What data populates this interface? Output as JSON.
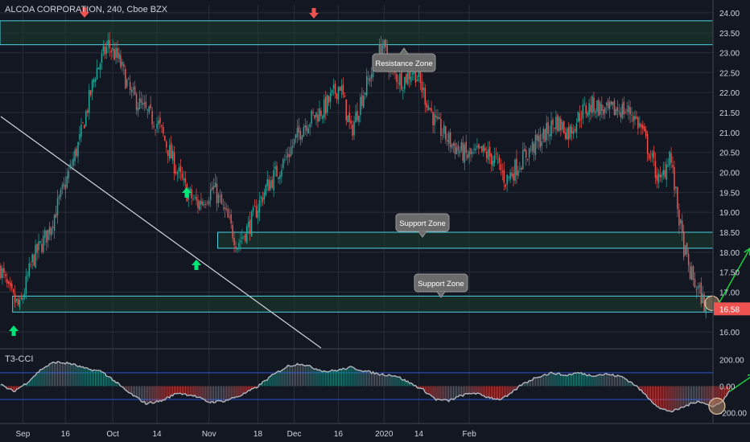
{
  "header": {
    "title": "ALCOA CORPORATION, 240, Cboe BZX",
    "indicator_title": "T3-CCI"
  },
  "colors": {
    "background": "#131722",
    "grid": "#2a2e39",
    "text": "#d1d4dc",
    "up": "#26a69a",
    "down": "#ef5350",
    "zone_fill": "#1b3a2e",
    "zone_border": "#4dd0e1",
    "trendline": "#d1d4dc",
    "arrow_green": "#00e676",
    "projection": "#19d23a",
    "last_price_bg": "#ef5350",
    "callout_bg": "#6b6b6b"
  },
  "annotations": {
    "resistance_label": "Resistance Zone",
    "support_label_1": "Support Zone",
    "support_label_2": "Support Zone"
  },
  "chart_data": [
    {
      "type": "candlestick",
      "title": "ALCOA CORPORATION, 240, Cboe BZX",
      "ylim": [
        15.6,
        24.2
      ],
      "y_ticks": [
        "24.00",
        "23.50",
        "23.00",
        "22.50",
        "22.00",
        "21.50",
        "21.00",
        "20.50",
        "20.00",
        "19.50",
        "19.00",
        "18.50",
        "18.00",
        "17.50",
        "17.00",
        "16.58",
        "16.00"
      ],
      "x_ticks": [
        "Sep",
        "16",
        "Oct",
        "14",
        "Nov",
        "18",
        "Dec",
        "16",
        "2020",
        "14",
        "Feb"
      ],
      "last_price": "16.58",
      "anchors": [
        [
          0,
          17.6
        ],
        [
          5,
          17.0
        ],
        [
          12,
          16.6
        ],
        [
          20,
          17.8
        ],
        [
          30,
          18.5
        ],
        [
          40,
          19.6
        ],
        [
          50,
          20.8
        ],
        [
          60,
          22.5
        ],
        [
          68,
          23.2
        ],
        [
          75,
          22.8
        ],
        [
          82,
          22.0
        ],
        [
          92,
          21.5
        ],
        [
          100,
          21.2
        ],
        [
          110,
          20.2
        ],
        [
          118,
          19.5
        ],
        [
          125,
          19.2
        ],
        [
          135,
          19.6
        ],
        [
          143,
          18.9
        ],
        [
          150,
          18.2
        ],
        [
          158,
          18.7
        ],
        [
          168,
          19.6
        ],
        [
          180,
          20.3
        ],
        [
          192,
          21.2
        ],
        [
          205,
          21.6
        ],
        [
          215,
          22.2
        ],
        [
          222,
          21.0
        ],
        [
          228,
          21.8
        ],
        [
          236,
          22.6
        ],
        [
          242,
          23.2
        ],
        [
          248,
          22.5
        ],
        [
          255,
          22.3
        ],
        [
          262,
          22.6
        ],
        [
          268,
          22.0
        ],
        [
          276,
          21.2
        ],
        [
          286,
          20.7
        ],
        [
          296,
          20.4
        ],
        [
          306,
          20.5
        ],
        [
          314,
          20.3
        ],
        [
          320,
          19.8
        ],
        [
          326,
          20.1
        ],
        [
          334,
          20.5
        ],
        [
          344,
          20.9
        ],
        [
          352,
          21.3
        ],
        [
          360,
          21.0
        ],
        [
          368,
          21.5
        ],
        [
          376,
          21.7
        ],
        [
          384,
          21.5
        ],
        [
          392,
          21.6
        ],
        [
          400,
          21.5
        ],
        [
          406,
          21.1
        ],
        [
          412,
          20.4
        ],
        [
          418,
          19.7
        ],
        [
          424,
          20.5
        ],
        [
          428,
          19.4
        ],
        [
          432,
          18.3
        ],
        [
          436,
          17.6
        ],
        [
          440,
          17.2
        ],
        [
          444,
          16.9
        ],
        [
          447,
          16.6
        ]
      ],
      "zones": [
        {
          "name": "resistance",
          "top": 23.8,
          "bottom": 23.2,
          "x_start": 0
        },
        {
          "name": "support-upper",
          "top": 18.5,
          "bottom": 18.1,
          "x_start": 138
        },
        {
          "name": "support-lower",
          "top": 16.9,
          "bottom": 16.5,
          "x_start": 8
        }
      ],
      "trendline": [
        [
          0,
          21.4
        ],
        [
          203,
          15.6
        ]
      ],
      "projection": [
        [
          455,
          16.7
        ],
        [
          475,
          18.1
        ],
        [
          485,
          18.2
        ],
        [
          515,
          23.1
        ]
      ]
    },
    {
      "type": "area",
      "title": "T3-CCI",
      "ylim": [
        -280,
        280
      ],
      "y_ticks": [
        "200.00",
        "0.00",
        "-200.00"
      ],
      "levels": [
        100,
        -100
      ],
      "anchors": [
        [
          0,
          10
        ],
        [
          8,
          -40
        ],
        [
          16,
          20
        ],
        [
          26,
          130
        ],
        [
          34,
          180
        ],
        [
          44,
          170
        ],
        [
          54,
          130
        ],
        [
          64,
          110
        ],
        [
          72,
          40
        ],
        [
          80,
          -40
        ],
        [
          92,
          -130
        ],
        [
          102,
          -110
        ],
        [
          112,
          -50
        ],
        [
          122,
          -70
        ],
        [
          132,
          -120
        ],
        [
          142,
          -110
        ],
        [
          152,
          -70
        ],
        [
          162,
          -10
        ],
        [
          172,
          80
        ],
        [
          182,
          150
        ],
        [
          190,
          170
        ],
        [
          200,
          130
        ],
        [
          206,
          110
        ],
        [
          214,
          120
        ],
        [
          222,
          140
        ],
        [
          232,
          110
        ],
        [
          240,
          90
        ],
        [
          250,
          80
        ],
        [
          260,
          20
        ],
        [
          268,
          -30
        ],
        [
          276,
          -100
        ],
        [
          284,
          -110
        ],
        [
          292,
          -70
        ],
        [
          300,
          -50
        ],
        [
          308,
          -80
        ],
        [
          316,
          -100
        ],
        [
          322,
          -70
        ],
        [
          330,
          10
        ],
        [
          340,
          70
        ],
        [
          350,
          100
        ],
        [
          358,
          80
        ],
        [
          366,
          100
        ],
        [
          374,
          80
        ],
        [
          384,
          90
        ],
        [
          394,
          70
        ],
        [
          402,
          10
        ],
        [
          410,
          -80
        ],
        [
          418,
          -170
        ],
        [
          426,
          -190
        ],
        [
          434,
          -150
        ],
        [
          442,
          -110
        ],
        [
          450,
          -150
        ],
        [
          456,
          -130
        ],
        [
          462,
          -40
        ]
      ],
      "projection": [
        [
          462,
          -40
        ],
        [
          478,
          90
        ]
      ]
    }
  ]
}
